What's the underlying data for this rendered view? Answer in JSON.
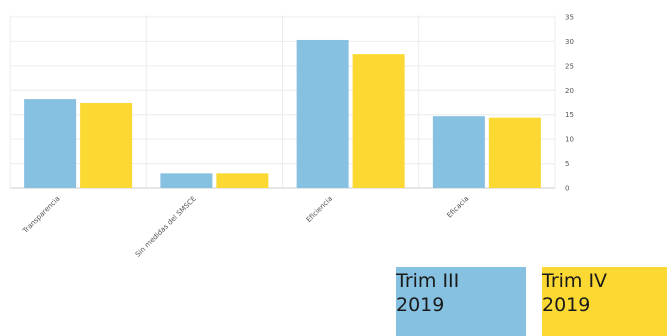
{
  "chart_data": {
    "type": "bar",
    "categories": [
      "Transparencia",
      "Sin medidas del SMSCE",
      "Eficiencia",
      "Eficacia"
    ],
    "series": [
      {
        "name": "Trim III 2019",
        "color": "#87c1e2",
        "values": [
          18.2,
          3.0,
          30.3,
          14.7
        ]
      },
      {
        "name": "Trim IV 2019",
        "color": "#fbd832",
        "values": [
          17.4,
          3.0,
          27.4,
          14.4
        ]
      }
    ],
    "ylim": [
      0,
      35
    ],
    "yticks": [
      0,
      5,
      10,
      15,
      20,
      25,
      30,
      35
    ],
    "grid": true,
    "legend_position": "bottom-right"
  },
  "legend": [
    {
      "line1": "Trim III",
      "line2": "2019",
      "color": "#87c1e2"
    },
    {
      "line1": "Trim IV",
      "line2": "2019",
      "color": "#fbd832"
    }
  ]
}
